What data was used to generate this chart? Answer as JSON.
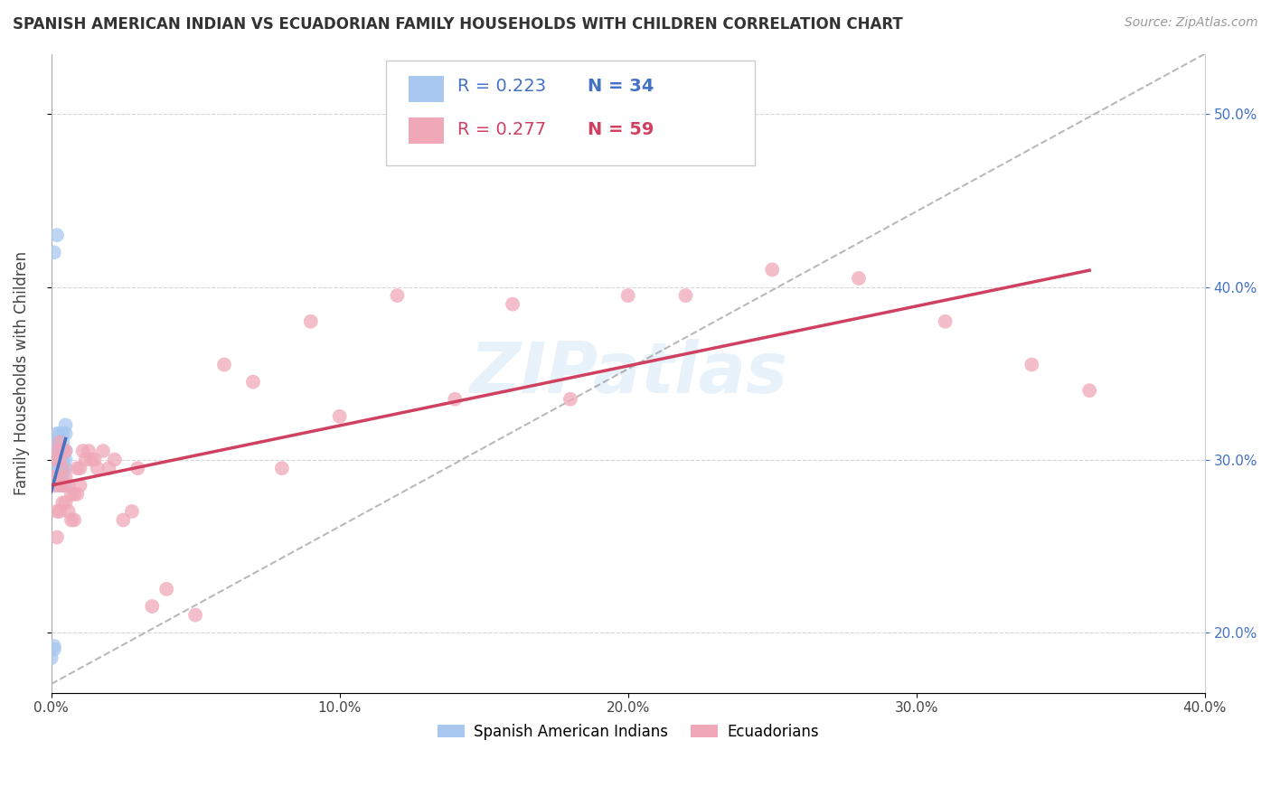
{
  "title": "SPANISH AMERICAN INDIAN VS ECUADORIAN FAMILY HOUSEHOLDS WITH CHILDREN CORRELATION CHART",
  "source": "Source: ZipAtlas.com",
  "ylabel": "Family Households with Children",
  "legend_labels": [
    "Spanish American Indians",
    "Ecuadorians"
  ],
  "legend_R": [
    0.223,
    0.277
  ],
  "legend_N": [
    34,
    59
  ],
  "blue_color": "#a8c8f0",
  "pink_color": "#f0a8b8",
  "blue_line_color": "#4472c4",
  "pink_line_color": "#d04060",
  "watermark": "ZIPatlas",
  "xlim": [
    0.0,
    0.4
  ],
  "ylim": [
    0.165,
    0.535
  ],
  "blue_x": [
    0.0,
    0.001,
    0.001,
    0.001,
    0.001,
    0.001,
    0.001,
    0.002,
    0.002,
    0.002,
    0.002,
    0.002,
    0.003,
    0.003,
    0.003,
    0.003,
    0.003,
    0.003,
    0.003,
    0.004,
    0.004,
    0.004,
    0.004,
    0.004,
    0.004,
    0.004,
    0.005,
    0.005,
    0.005,
    0.005,
    0.005,
    0.005,
    0.001,
    0.002
  ],
  "blue_y": [
    0.185,
    0.192,
    0.19,
    0.29,
    0.3,
    0.305,
    0.31,
    0.285,
    0.295,
    0.31,
    0.295,
    0.315,
    0.29,
    0.295,
    0.3,
    0.305,
    0.31,
    0.315,
    0.295,
    0.29,
    0.295,
    0.3,
    0.305,
    0.3,
    0.31,
    0.315,
    0.285,
    0.295,
    0.3,
    0.305,
    0.315,
    0.32,
    0.42,
    0.43
  ],
  "pink_x": [
    0.0,
    0.001,
    0.001,
    0.002,
    0.002,
    0.002,
    0.002,
    0.003,
    0.003,
    0.003,
    0.003,
    0.004,
    0.004,
    0.004,
    0.004,
    0.005,
    0.005,
    0.005,
    0.006,
    0.006,
    0.007,
    0.007,
    0.008,
    0.008,
    0.009,
    0.009,
    0.01,
    0.01,
    0.011,
    0.012,
    0.013,
    0.014,
    0.015,
    0.016,
    0.018,
    0.02,
    0.022,
    0.025,
    0.028,
    0.03,
    0.035,
    0.04,
    0.05,
    0.06,
    0.07,
    0.08,
    0.09,
    0.1,
    0.12,
    0.14,
    0.16,
    0.18,
    0.2,
    0.22,
    0.25,
    0.28,
    0.31,
    0.34,
    0.36
  ],
  "pink_y": [
    0.29,
    0.285,
    0.3,
    0.255,
    0.27,
    0.29,
    0.305,
    0.27,
    0.285,
    0.3,
    0.31,
    0.275,
    0.285,
    0.295,
    0.305,
    0.275,
    0.29,
    0.305,
    0.27,
    0.285,
    0.265,
    0.28,
    0.265,
    0.28,
    0.28,
    0.295,
    0.285,
    0.295,
    0.305,
    0.3,
    0.305,
    0.3,
    0.3,
    0.295,
    0.305,
    0.295,
    0.3,
    0.265,
    0.27,
    0.295,
    0.215,
    0.225,
    0.21,
    0.355,
    0.345,
    0.295,
    0.38,
    0.325,
    0.395,
    0.335,
    0.39,
    0.335,
    0.395,
    0.395,
    0.41,
    0.405,
    0.38,
    0.355,
    0.34
  ],
  "xticks": [
    0.0,
    0.1,
    0.2,
    0.3,
    0.4
  ],
  "xtick_labels": [
    "0.0%",
    "10.0%",
    "20.0%",
    "30.0%",
    "40.0%"
  ],
  "yticks_right": [
    0.2,
    0.3,
    0.4,
    0.5
  ],
  "ytick_right_labels": [
    "20.0%",
    "30.0%",
    "40.0%",
    "50.0%"
  ],
  "ref_line_x": [
    0.0,
    0.4
  ],
  "ref_line_y": [
    0.17,
    0.535
  ]
}
